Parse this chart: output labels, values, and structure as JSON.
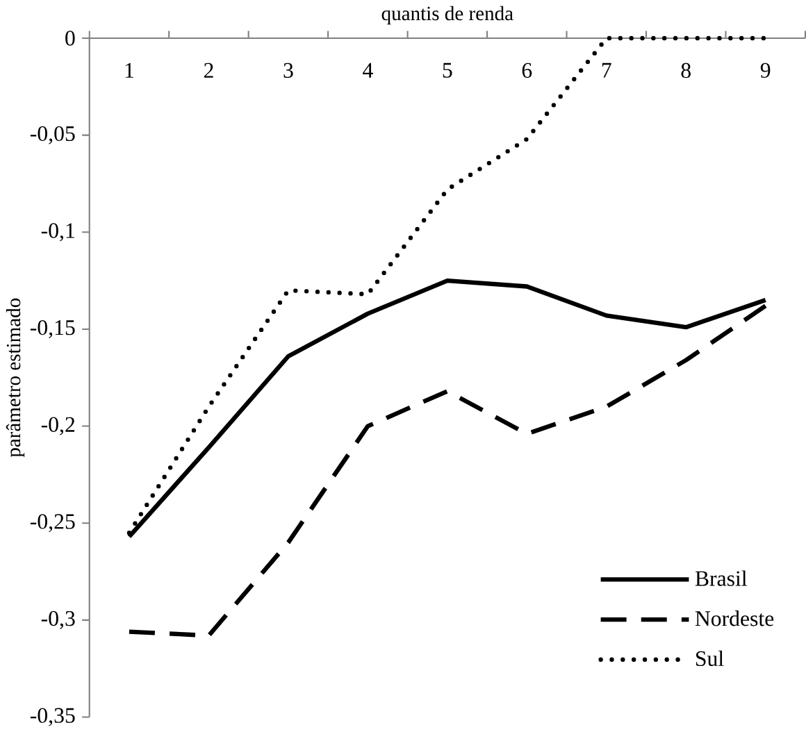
{
  "chart_data": {
    "type": "line",
    "xlabel": "quantis de renda",
    "ylabel": "parâmetro estimado",
    "categories": [
      "1",
      "2",
      "3",
      "4",
      "5",
      "6",
      "7",
      "8",
      "9"
    ],
    "series": [
      {
        "name": "Brasil",
        "color": "#000000",
        "line_style": "solid",
        "values": [
          -0.257,
          -0.211,
          -0.164,
          -0.142,
          -0.125,
          -0.128,
          -0.143,
          -0.149,
          -0.135
        ]
      },
      {
        "name": "Nordeste",
        "color": "#000000",
        "line_style": "dashed",
        "values": [
          -0.306,
          -0.308,
          -0.26,
          -0.2,
          -0.182,
          -0.204,
          -0.19,
          -0.166,
          -0.138
        ]
      },
      {
        "name": "Sul",
        "color": "#000000",
        "line_style": "dotted",
        "values": [
          -0.255,
          -0.19,
          -0.13,
          -0.132,
          -0.078,
          -0.052,
          0,
          0,
          0
        ]
      }
    ],
    "ylim": [
      -0.35,
      0
    ],
    "yticks": [
      0,
      {
        "value": -0.05,
        "label": "-0,05"
      },
      {
        "value": -0.1,
        "label": "-0,1"
      },
      {
        "value": -0.15,
        "label": "-0,15"
      },
      {
        "value": -0.2,
        "label": "-0,2"
      },
      {
        "value": -0.25,
        "label": "-0,25"
      },
      {
        "value": -0.3,
        "label": "-0,3"
      },
      {
        "value": -0.35,
        "label": "-0,35"
      }
    ],
    "legend": "bottom right",
    "marker": "none"
  }
}
